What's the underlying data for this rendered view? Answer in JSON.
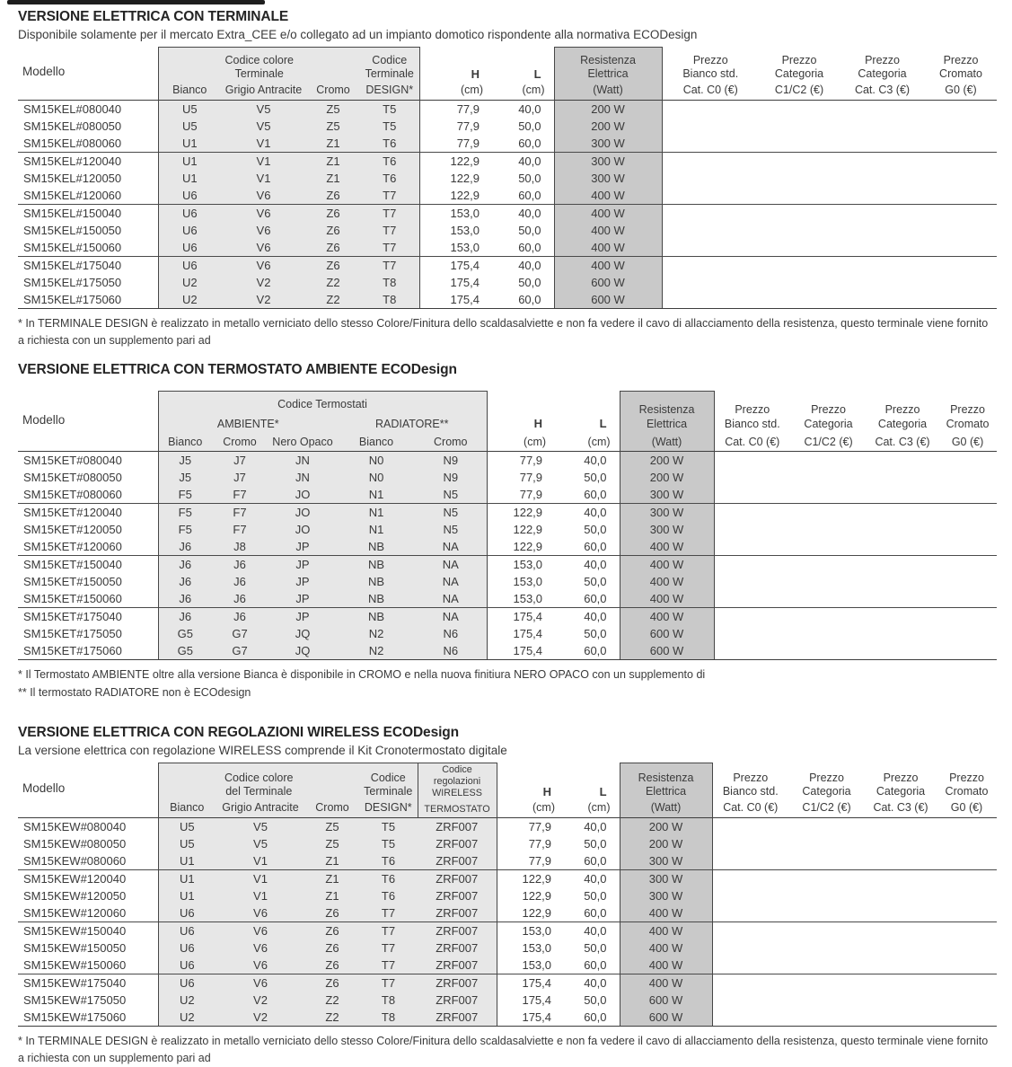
{
  "sections": [
    {
      "title": "VERSIONE ELETTRICA CON TERMINALE",
      "subtitle": "Disponibile solamente per il mercato Extra_CEE e/o collegato ad un impianto domotico rispondente alla normativa ECODesign",
      "header": {
        "modello": "Modello",
        "group1": "Codice colore\nTerminale",
        "design_top": "Codice\nTerminale",
        "sub": [
          "Bianco",
          "Grigio Antracite",
          "Cromo",
          "DESIGN*"
        ],
        "h": "H",
        "l": "L",
        "cm": "(cm)",
        "resistenza": "Resistenza\nElettrica",
        "watt": "(Watt)",
        "prices": [
          {
            "top": "Prezzo\nBianco std.",
            "bottom": "Cat. C0 (€)"
          },
          {
            "top": "Prezzo\nCategoria",
            "bottom": "C1/C2 (€)"
          },
          {
            "top": "Prezzo\nCategoria",
            "bottom": "Cat. C3 (€)"
          },
          {
            "top": "Prezzo\nCromato",
            "bottom": "G0 (€)"
          }
        ]
      },
      "rows": [
        [
          "SM15KEL#080040",
          "U5",
          "V5",
          "Z5",
          "T5",
          "77,9",
          "40,0",
          "200 W"
        ],
        [
          "SM15KEL#080050",
          "U5",
          "V5",
          "Z5",
          "T5",
          "77,9",
          "50,0",
          "200 W"
        ],
        [
          "SM15KEL#080060",
          "U1",
          "V1",
          "Z1",
          "T6",
          "77,9",
          "60,0",
          "300 W"
        ],
        [
          "SM15KEL#120040",
          "U1",
          "V1",
          "Z1",
          "T6",
          "122,9",
          "40,0",
          "300 W"
        ],
        [
          "SM15KEL#120050",
          "U1",
          "V1",
          "Z1",
          "T6",
          "122,9",
          "50,0",
          "300 W"
        ],
        [
          "SM15KEL#120060",
          "U6",
          "V6",
          "Z6",
          "T7",
          "122,9",
          "60,0",
          "400 W"
        ],
        [
          "SM15KEL#150040",
          "U6",
          "V6",
          "Z6",
          "T7",
          "153,0",
          "40,0",
          "400 W"
        ],
        [
          "SM15KEL#150050",
          "U6",
          "V6",
          "Z6",
          "T7",
          "153,0",
          "50,0",
          "400 W"
        ],
        [
          "SM15KEL#150060",
          "U6",
          "V6",
          "Z6",
          "T7",
          "153,0",
          "60,0",
          "400 W"
        ],
        [
          "SM15KEL#175040",
          "U6",
          "V6",
          "Z6",
          "T7",
          "175,4",
          "40,0",
          "400 W"
        ],
        [
          "SM15KEL#175050",
          "U2",
          "V2",
          "Z2",
          "T8",
          "175,4",
          "50,0",
          "600 W"
        ],
        [
          "SM15KEL#175060",
          "U2",
          "V2",
          "Z2",
          "T8",
          "175,4",
          "60,0",
          "600 W"
        ]
      ],
      "footnotes": [
        "* In TERMINALE DESIGN è realizzato in metallo verniciato dello stesso Colore/Finitura dello scaldasalviette e non fa vedere il cavo di allacciamento della resistenza, questo terminale viene fornito a richiesta con un supplemento pari ad"
      ]
    },
    {
      "title": "VERSIONE ELETTRICA CON TERMOSTATO AMBIENTE ECODesign",
      "header": {
        "modello": "Modello",
        "group1": "Codice Termostati",
        "ambiente": "AMBIENTE*",
        "radiatore": "RADIATORE**",
        "sub": [
          "Bianco",
          "Cromo",
          "Nero Opaco",
          "Bianco",
          "Cromo"
        ],
        "h": "H",
        "l": "L",
        "cm": "(cm)",
        "resistenza": "Resistenza\nElettrica",
        "watt": "(Watt)",
        "prices": [
          {
            "top": "Prezzo\nBianco std.",
            "bottom": "Cat. C0 (€)"
          },
          {
            "top": "Prezzo\nCategoria",
            "bottom": "C1/C2 (€)"
          },
          {
            "top": "Prezzo\nCategoria",
            "bottom": "Cat. C3 (€)"
          },
          {
            "top": "Prezzo\nCromato",
            "bottom": "G0 (€)"
          }
        ]
      },
      "rows": [
        [
          "SM15KET#080040",
          "J5",
          "J7",
          "JN",
          "N0",
          "N9",
          "77,9",
          "40,0",
          "200 W"
        ],
        [
          "SM15KET#080050",
          "J5",
          "J7",
          "JN",
          "N0",
          "N9",
          "77,9",
          "50,0",
          "200 W"
        ],
        [
          "SM15KET#080060",
          "F5",
          "F7",
          "JO",
          "N1",
          "N5",
          "77,9",
          "60,0",
          "300 W"
        ],
        [
          "SM15KET#120040",
          "F5",
          "F7",
          "JO",
          "N1",
          "N5",
          "122,9",
          "40,0",
          "300 W"
        ],
        [
          "SM15KET#120050",
          "F5",
          "F7",
          "JO",
          "N1",
          "N5",
          "122,9",
          "50,0",
          "300 W"
        ],
        [
          "SM15KET#120060",
          "J6",
          "J8",
          "JP",
          "NB",
          "NA",
          "122,9",
          "60,0",
          "400 W"
        ],
        [
          "SM15KET#150040",
          "J6",
          "J6",
          "JP",
          "NB",
          "NA",
          "153,0",
          "40,0",
          "400 W"
        ],
        [
          "SM15KET#150050",
          "J6",
          "J6",
          "JP",
          "NB",
          "NA",
          "153,0",
          "50,0",
          "400 W"
        ],
        [
          "SM15KET#150060",
          "J6",
          "J6",
          "JP",
          "NB",
          "NA",
          "153,0",
          "60,0",
          "400 W"
        ],
        [
          "SM15KET#175040",
          "J6",
          "J6",
          "JP",
          "NB",
          "NA",
          "175,4",
          "40,0",
          "400 W"
        ],
        [
          "SM15KET#175050",
          "G5",
          "G7",
          "JQ",
          "N2",
          "N6",
          "175,4",
          "50,0",
          "600 W"
        ],
        [
          "SM15KET#175060",
          "G5",
          "G7",
          "JQ",
          "N2",
          "N6",
          "175,4",
          "60,0",
          "600 W"
        ]
      ],
      "footnotes": [
        "* Il Termostato AMBIENTE oltre alla versione Bianca è disponibile in CROMO e nella nuova finitiura NERO OPACO con un supplemento di",
        "** Il termostato RADIATORE non è ECOdesign"
      ]
    },
    {
      "title": "VERSIONE ELETTRICA CON REGOLAZIONI WIRELESS ECODesign",
      "subtitle": "La versione elettrica con regolazione WIRELESS comprende il Kit Cronotermostato digitale",
      "header": {
        "modello": "Modello",
        "group1": "Codice colore\ndel Terminale",
        "design_top": "Codice\nTerminale",
        "wireless_top": "Codice\nregolazioni\nWIRELESS",
        "wireless_bottom": "TERMOSTATO",
        "sub": [
          "Bianco",
          "Grigio Antracite",
          "Cromo",
          "DESIGN*"
        ],
        "h": "H",
        "l": "L",
        "cm": "(cm)",
        "resistenza": "Resistenza\nElettrica",
        "watt": "(Watt)",
        "prices": [
          {
            "top": "Prezzo\nBianco std.",
            "bottom": "Cat. C0 (€)"
          },
          {
            "top": "Prezzo\nCategoria",
            "bottom": "C1/C2 (€)"
          },
          {
            "top": "Prezzo\nCategoria",
            "bottom": "Cat. C3 (€)"
          },
          {
            "top": "Prezzo\nCromato",
            "bottom": "G0 (€)"
          }
        ]
      },
      "rows": [
        [
          "SM15KEW#080040",
          "U5",
          "V5",
          "Z5",
          "T5",
          "ZRF007",
          "77,9",
          "40,0",
          "200 W"
        ],
        [
          "SM15KEW#080050",
          "U5",
          "V5",
          "Z5",
          "T5",
          "ZRF007",
          "77,9",
          "50,0",
          "200 W"
        ],
        [
          "SM15KEW#080060",
          "U1",
          "V1",
          "Z1",
          "T6",
          "ZRF007",
          "77,9",
          "60,0",
          "300 W"
        ],
        [
          "SM15KEW#120040",
          "U1",
          "V1",
          "Z1",
          "T6",
          "ZRF007",
          "122,9",
          "40,0",
          "300 W"
        ],
        [
          "SM15KEW#120050",
          "U1",
          "V1",
          "Z1",
          "T6",
          "ZRF007",
          "122,9",
          "50,0",
          "300 W"
        ],
        [
          "SM15KEW#120060",
          "U6",
          "V6",
          "Z6",
          "T7",
          "ZRF007",
          "122,9",
          "60,0",
          "400 W"
        ],
        [
          "SM15KEW#150040",
          "U6",
          "V6",
          "Z6",
          "T7",
          "ZRF007",
          "153,0",
          "40,0",
          "400 W"
        ],
        [
          "SM15KEW#150050",
          "U6",
          "V6",
          "Z6",
          "T7",
          "ZRF007",
          "153,0",
          "50,0",
          "400 W"
        ],
        [
          "SM15KEW#150060",
          "U6",
          "V6",
          "Z6",
          "T7",
          "ZRF007",
          "153,0",
          "60,0",
          "400 W"
        ],
        [
          "SM15KEW#175040",
          "U6",
          "V6",
          "Z6",
          "T7",
          "ZRF007",
          "175,4",
          "40,0",
          "400 W"
        ],
        [
          "SM15KEW#175050",
          "U2",
          "V2",
          "Z2",
          "T8",
          "ZRF007",
          "175,4",
          "50,0",
          "600 W"
        ],
        [
          "SM15KEW#175060",
          "U2",
          "V2",
          "Z2",
          "T8",
          "ZRF007",
          "175,4",
          "60,0",
          "600 W"
        ]
      ],
      "footnotes": [
        "* In TERMINALE DESIGN è realizzato in metallo verniciato dello stesso Colore/Finitura dello scaldasalviette e non fa vedere il cavo di allacciamento della resistenza, questo terminale viene fornito a richiesta con un supplemento pari ad"
      ]
    }
  ],
  "colors": {
    "block_light": "#e7e7e7",
    "block_dark": "#c9c9c9",
    "rule": "#474747",
    "text": "#3a3a3a"
  }
}
